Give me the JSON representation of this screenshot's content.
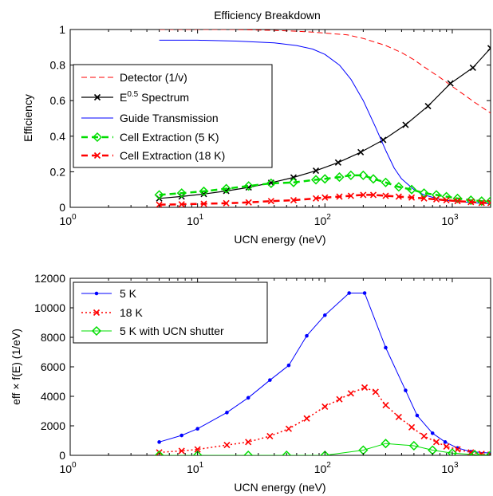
{
  "figure": {
    "background": "#ffffff"
  },
  "chart_data": [
    {
      "type": "line",
      "title": "Efficiency Breakdown",
      "xlabel": "UCN energy (neV)",
      "ylabel": "Efficiency",
      "xscale": "log",
      "xlim": [
        1,
        2000
      ],
      "ylim": [
        0,
        1
      ],
      "xticks": [
        1,
        10,
        100,
        1000
      ],
      "xtick_labels": [
        {
          "base": "10",
          "exp": "0"
        },
        {
          "base": "10",
          "exp": "1"
        },
        {
          "base": "10",
          "exp": "2"
        },
        {
          "base": "10",
          "exp": "3"
        }
      ],
      "yticks": [
        0,
        0.2,
        0.4,
        0.6,
        0.8,
        1
      ],
      "ytick_labels": [
        "0",
        "0.2",
        "0.4",
        "0.6",
        "0.8",
        "1"
      ],
      "grid": false,
      "legend": "upper-left",
      "series": [
        {
          "name": "Detector (1/v)",
          "color": "#ff0000",
          "dash": "7,4",
          "width": 1,
          "marker": "none",
          "x": [
            5,
            10,
            20,
            40,
            60,
            80,
            100,
            150,
            200,
            300,
            400,
            500,
            600,
            800,
            1000,
            1200,
            1500,
            2000
          ],
          "y": [
            1,
            1,
            1,
            0.995,
            0.99,
            0.985,
            0.98,
            0.97,
            0.95,
            0.91,
            0.87,
            0.83,
            0.79,
            0.73,
            0.68,
            0.64,
            0.59,
            0.53
          ]
        },
        {
          "name": "E^0.5 Spectrum",
          "name_parts": {
            "base": "E",
            "exp": "0.5",
            "rest": " Spectrum"
          },
          "color": "#000000",
          "dash": "",
          "width": 1.2,
          "marker": "x",
          "x": [
            5,
            7.5,
            11.2,
            16.8,
            25.2,
            37.8,
            56.7,
            85,
            127,
            191,
            287,
            430,
            645,
            968,
            1452,
            2000
          ],
          "y": [
            0.05,
            0.061,
            0.075,
            0.092,
            0.112,
            0.138,
            0.168,
            0.206,
            0.252,
            0.31,
            0.379,
            0.464,
            0.569,
            0.697,
            0.785,
            0.895
          ]
        },
        {
          "name": "Guide Transmission",
          "color": "#0000ff",
          "dash": "",
          "width": 1,
          "marker": "none",
          "x": [
            5,
            10,
            20,
            40,
            60,
            80,
            100,
            130,
            160,
            200,
            250,
            300,
            350,
            400,
            500,
            600,
            800,
            1000,
            1500,
            2000
          ],
          "y": [
            0.94,
            0.94,
            0.935,
            0.925,
            0.91,
            0.89,
            0.86,
            0.8,
            0.72,
            0.6,
            0.45,
            0.32,
            0.22,
            0.16,
            0.1,
            0.07,
            0.045,
            0.035,
            0.025,
            0.02
          ]
        },
        {
          "name": "Cell Extraction (5 K)",
          "color": "#00dd00",
          "dash": "8,5",
          "width": 2.5,
          "marker": "diamond",
          "x": [
            5,
            7.5,
            11.2,
            16.8,
            25.2,
            37.8,
            56.7,
            85,
            100,
            130,
            160,
            200,
            240,
            300,
            380,
            480,
            600,
            750,
            900,
            1100,
            1400,
            1700,
            2000
          ],
          "y": [
            0.07,
            0.08,
            0.09,
            0.105,
            0.12,
            0.135,
            0.14,
            0.155,
            0.16,
            0.17,
            0.18,
            0.18,
            0.16,
            0.14,
            0.115,
            0.1,
            0.08,
            0.07,
            0.06,
            0.05,
            0.04,
            0.035,
            0.035
          ]
        },
        {
          "name": "Cell Extraction (18 K)",
          "color": "#ff0000",
          "dash": "8,5",
          "width": 2.5,
          "marker": "x",
          "x": [
            5,
            7.5,
            11.2,
            16.8,
            25.2,
            37.8,
            56.7,
            85,
            100,
            130,
            160,
            200,
            240,
            300,
            380,
            480,
            600,
            750,
            900,
            1100,
            1400,
            1700,
            2000
          ],
          "y": [
            0.015,
            0.017,
            0.02,
            0.023,
            0.028,
            0.035,
            0.04,
            0.05,
            0.055,
            0.06,
            0.065,
            0.07,
            0.07,
            0.065,
            0.06,
            0.055,
            0.05,
            0.045,
            0.04,
            0.035,
            0.03,
            0.025,
            0.025
          ]
        }
      ]
    },
    {
      "type": "line",
      "title": "",
      "xlabel": "UCN energy (neV)",
      "ylabel": "eff × f(E) (1/eV)",
      "xscale": "log",
      "xlim": [
        1,
        2000
      ],
      "ylim": [
        0,
        12000
      ],
      "xticks": [
        1,
        10,
        100,
        1000
      ],
      "xtick_labels": [
        {
          "base": "10",
          "exp": "0"
        },
        {
          "base": "10",
          "exp": "1"
        },
        {
          "base": "10",
          "exp": "2"
        },
        {
          "base": "10",
          "exp": "3"
        }
      ],
      "yticks": [
        0,
        2000,
        4000,
        6000,
        8000,
        10000,
        12000
      ],
      "ytick_labels": [
        "0",
        "2000",
        "4000",
        "6000",
        "8000",
        "10000",
        "12000"
      ],
      "grid": false,
      "legend": "upper-left",
      "series": [
        {
          "name": "5 K",
          "color": "#0000ff",
          "dash": "",
          "width": 1,
          "marker": "dot",
          "x": [
            5,
            7.5,
            10,
            17,
            25,
            37,
            52,
            72,
            100,
            155,
            205,
            300,
            430,
            530,
            700,
            880,
            1100,
            1400,
            2000
          ],
          "y": [
            900,
            1350,
            1800,
            2900,
            3900,
            5100,
            6100,
            8100,
            9500,
            11000,
            11000,
            7300,
            4400,
            2700,
            1500,
            900,
            500,
            250,
            150
          ]
        },
        {
          "name": "18 K",
          "color": "#ff0000",
          "dash": "2,3",
          "width": 1.5,
          "marker": "x",
          "x": [
            5,
            7.5,
            10,
            17,
            25,
            37,
            52,
            72,
            100,
            130,
            160,
            205,
            250,
            300,
            380,
            480,
            600,
            750,
            900,
            1100,
            1400,
            1700,
            2000
          ],
          "y": [
            200,
            300,
            400,
            700,
            900,
            1300,
            1800,
            2500,
            3300,
            3800,
            4200,
            4600,
            4300,
            3400,
            2600,
            1900,
            1300,
            900,
            600,
            400,
            200,
            100,
            50
          ]
        },
        {
          "name": "5 K with UCN shutter",
          "color": "#00dd00",
          "dash": "",
          "width": 1,
          "marker": "diamond",
          "x": [
            5,
            10,
            25,
            50,
            100,
            200,
            300,
            500,
            700,
            1000,
            1500,
            2000
          ],
          "y": [
            0,
            0,
            0,
            0,
            0,
            350,
            800,
            650,
            350,
            150,
            50,
            20
          ]
        }
      ]
    }
  ]
}
